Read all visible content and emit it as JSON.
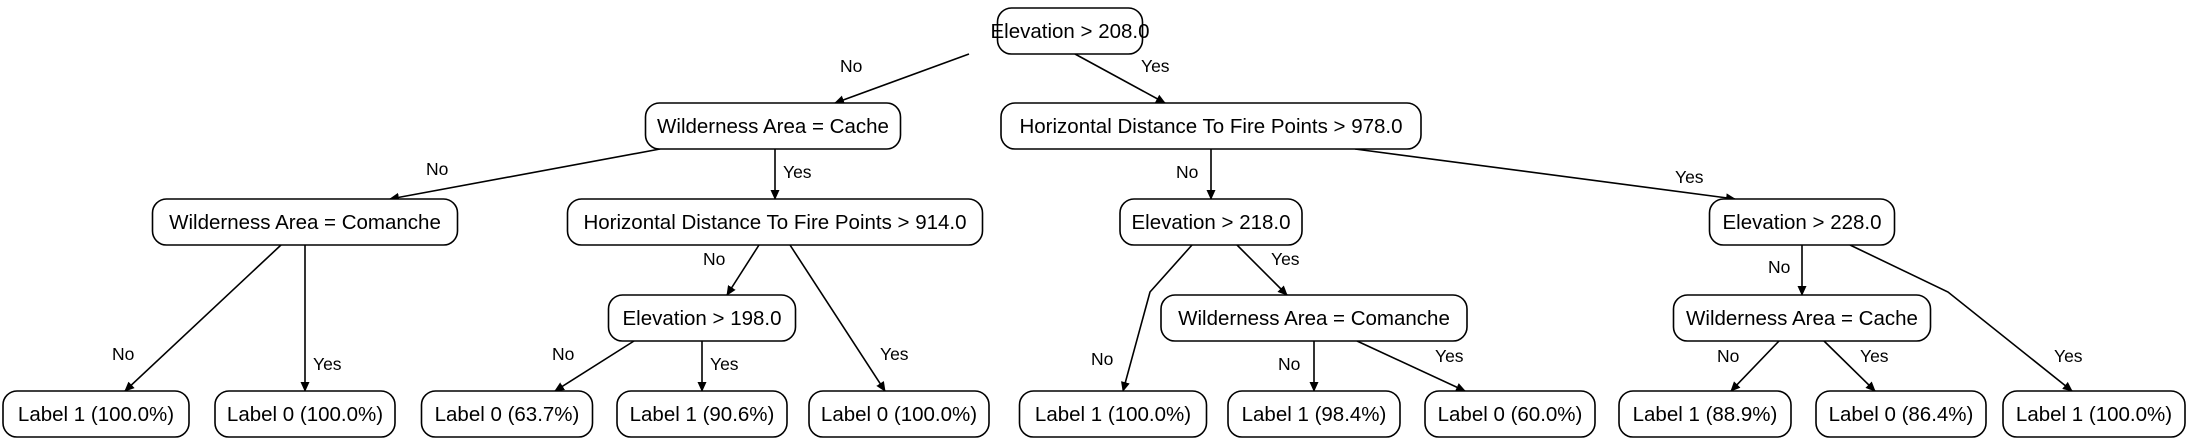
{
  "tree": {
    "nodes": [
      {
        "id": "n_root",
        "label": "Elevation > 208.0"
      },
      {
        "id": "n_wild_cache_l",
        "label": "Wilderness Area = Cache"
      },
      {
        "id": "n_hdfp_978",
        "label": "Horizontal Distance To Fire Points > 978.0"
      },
      {
        "id": "n_wild_comanche_l",
        "label": "Wilderness Area = Comanche"
      },
      {
        "id": "n_hdfp_914",
        "label": "Horizontal Distance To Fire Points > 914.0"
      },
      {
        "id": "n_elev_218",
        "label": "Elevation > 218.0"
      },
      {
        "id": "n_elev_228",
        "label": "Elevation > 228.0"
      },
      {
        "id": "n_elev_198",
        "label": "Elevation > 198.0"
      },
      {
        "id": "n_wild_comanche_r",
        "label": "Wilderness Area = Comanche"
      },
      {
        "id": "n_wild_cache_r",
        "label": "Wilderness Area = Cache"
      },
      {
        "id": "leaf_1",
        "label": "Label 1 (100.0%)"
      },
      {
        "id": "leaf_2",
        "label": "Label 0 (100.0%)"
      },
      {
        "id": "leaf_3",
        "label": "Label 0 (63.7%)"
      },
      {
        "id": "leaf_4",
        "label": "Label 1 (90.6%)"
      },
      {
        "id": "leaf_5",
        "label": "Label 0 (100.0%)"
      },
      {
        "id": "leaf_6",
        "label": "Label 1 (100.0%)"
      },
      {
        "id": "leaf_7",
        "label": "Label 1 (98.4%)"
      },
      {
        "id": "leaf_8",
        "label": "Label 0 (60.0%)"
      },
      {
        "id": "leaf_9",
        "label": "Label 1 (88.9%)"
      },
      {
        "id": "leaf_10",
        "label": "Label 0 (86.4%)"
      },
      {
        "id": "leaf_11",
        "label": "Label 1 (100.0%)"
      }
    ],
    "edges": [
      {
        "from": "n_root",
        "to": "n_wild_cache_l",
        "label": "No"
      },
      {
        "from": "n_root",
        "to": "n_hdfp_978",
        "label": "Yes"
      },
      {
        "from": "n_wild_cache_l",
        "to": "n_wild_comanche_l",
        "label": "No"
      },
      {
        "from": "n_wild_cache_l",
        "to": "n_hdfp_914",
        "label": "Yes"
      },
      {
        "from": "n_hdfp_978",
        "to": "n_elev_218",
        "label": "No"
      },
      {
        "from": "n_hdfp_978",
        "to": "n_elev_228",
        "label": "Yes"
      },
      {
        "from": "n_wild_comanche_l",
        "to": "leaf_1",
        "label": "No"
      },
      {
        "from": "n_wild_comanche_l",
        "to": "leaf_2",
        "label": "Yes"
      },
      {
        "from": "n_hdfp_914",
        "to": "n_elev_198",
        "label": "No"
      },
      {
        "from": "n_hdfp_914",
        "to": "leaf_5",
        "label": "Yes"
      },
      {
        "from": "n_elev_198",
        "to": "leaf_3",
        "label": "No"
      },
      {
        "from": "n_elev_198",
        "to": "leaf_4",
        "label": "Yes"
      },
      {
        "from": "n_elev_218",
        "to": "leaf_6",
        "label": "No"
      },
      {
        "from": "n_elev_218",
        "to": "n_wild_comanche_r",
        "label": "Yes"
      },
      {
        "from": "n_wild_comanche_r",
        "to": "leaf_7",
        "label": "No"
      },
      {
        "from": "n_wild_comanche_r",
        "to": "leaf_8",
        "label": "Yes"
      },
      {
        "from": "n_elev_228",
        "to": "n_wild_cache_r",
        "label": "No"
      },
      {
        "from": "n_elev_228",
        "to": "leaf_11",
        "label": "Yes"
      },
      {
        "from": "n_wild_cache_r",
        "to": "leaf_9",
        "label": "No"
      },
      {
        "from": "n_wild_cache_r",
        "to": "leaf_10",
        "label": "Yes"
      }
    ]
  }
}
